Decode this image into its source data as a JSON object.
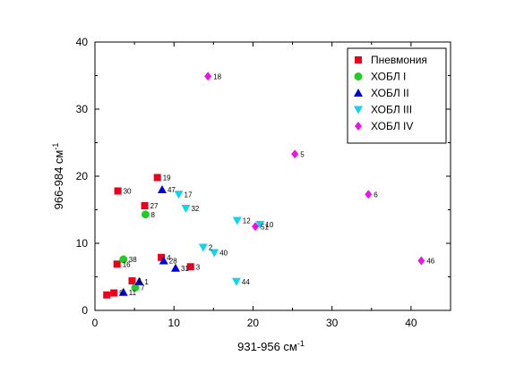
{
  "chart_data": {
    "type": "scatter",
    "title": "",
    "xlabel": "931-956 см",
    "xlabel_sup": "-1",
    "ylabel": "966-984 см",
    "ylabel_sup": "-1",
    "xlim": [
      0,
      45
    ],
    "ylim": [
      0,
      40
    ],
    "xticks": [
      0,
      10,
      20,
      30,
      40
    ],
    "yticks": [
      0,
      10,
      20,
      30,
      40
    ],
    "grid": false,
    "legend_position": "top-right",
    "series": [
      {
        "name": "Пневмония",
        "marker": "square",
        "color": "#e8001c",
        "points": [
          {
            "x": 2.9,
            "y": 17.8,
            "label": "30"
          },
          {
            "x": 7.9,
            "y": 19.8,
            "label": "19"
          },
          {
            "x": 6.3,
            "y": 15.6,
            "label": "27"
          },
          {
            "x": 8.4,
            "y": 7.9,
            "label": "4"
          },
          {
            "x": 12.1,
            "y": 6.5,
            "label": "3"
          },
          {
            "x": 2.8,
            "y": 6.9,
            "label": "16"
          },
          {
            "x": 4.7,
            "y": 4.4,
            "label": "4"
          },
          {
            "x": 2.4,
            "y": 2.6,
            "label": "5"
          },
          {
            "x": 1.5,
            "y": 2.3,
            "label": ""
          }
        ]
      },
      {
        "name": "ХОБЛ I",
        "marker": "circle",
        "color": "#22cc22",
        "points": [
          {
            "x": 6.4,
            "y": 14.3,
            "label": "8"
          },
          {
            "x": 3.6,
            "y": 7.6,
            "label": "38"
          },
          {
            "x": 5.1,
            "y": 3.4,
            "label": "7"
          }
        ]
      },
      {
        "name": "ХОБЛ II",
        "marker": "triangle-up",
        "color": "#0000dd",
        "points": [
          {
            "x": 8.5,
            "y": 18.0,
            "label": "47"
          },
          {
            "x": 8.7,
            "y": 7.4,
            "label": "28"
          },
          {
            "x": 10.2,
            "y": 6.3,
            "label": "31"
          },
          {
            "x": 5.6,
            "y": 4.3,
            "label": "1"
          },
          {
            "x": 3.6,
            "y": 2.7,
            "label": "11"
          }
        ]
      },
      {
        "name": "ХОБЛ III",
        "marker": "triangle-down",
        "color": "#11d4f0",
        "points": [
          {
            "x": 10.6,
            "y": 17.3,
            "label": "17"
          },
          {
            "x": 11.5,
            "y": 15.2,
            "label": "32"
          },
          {
            "x": 18.0,
            "y": 13.4,
            "label": "12"
          },
          {
            "x": 20.9,
            "y": 12.8,
            "label": "10"
          },
          {
            "x": 13.7,
            "y": 9.4,
            "label": "2"
          },
          {
            "x": 15.1,
            "y": 8.6,
            "label": "40"
          },
          {
            "x": 17.9,
            "y": 4.3,
            "label": "44"
          }
        ]
      },
      {
        "name": "ХОБЛ IV",
        "marker": "diamond",
        "color": "#ee11ee",
        "points": [
          {
            "x": 14.3,
            "y": 34.9,
            "label": "18"
          },
          {
            "x": 25.3,
            "y": 23.3,
            "label": "5"
          },
          {
            "x": 34.6,
            "y": 17.3,
            "label": "6"
          },
          {
            "x": 20.3,
            "y": 12.5,
            "label": "51"
          },
          {
            "x": 41.3,
            "y": 7.4,
            "label": "46"
          }
        ]
      }
    ]
  }
}
